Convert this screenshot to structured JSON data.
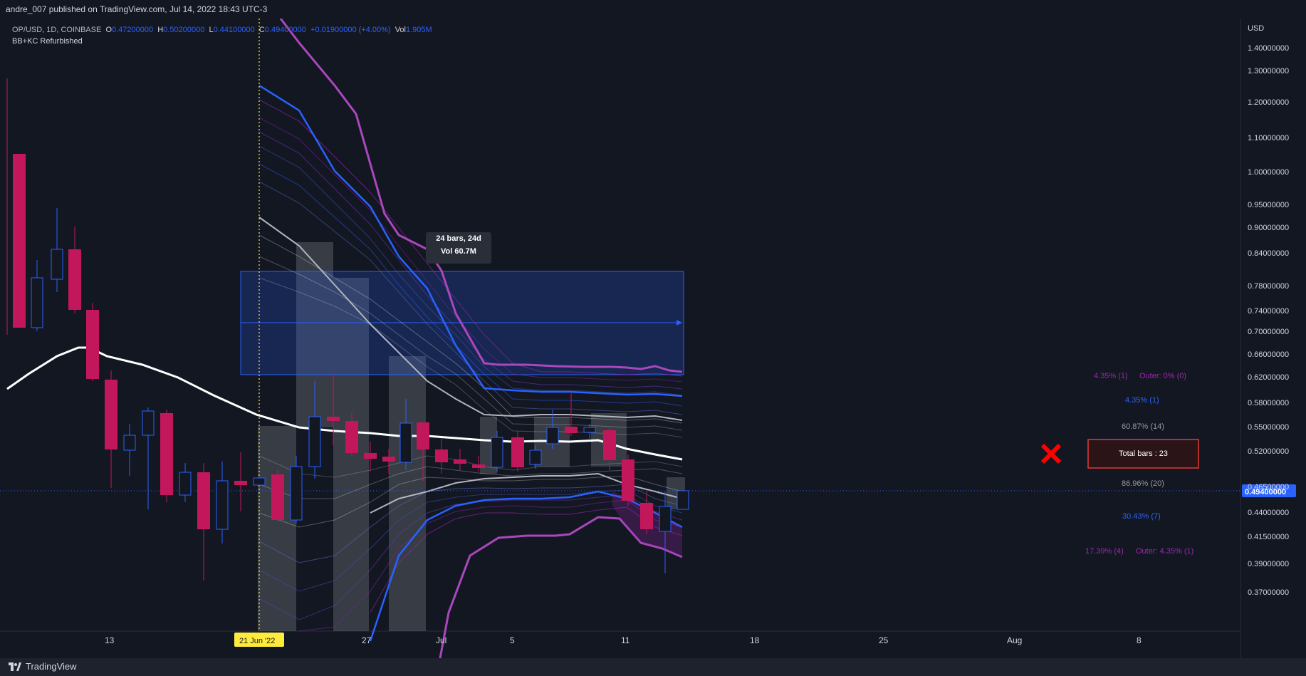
{
  "header": {
    "publish_line": "andre_007 published on TradingView.com, Jul 14, 2022 18:43 UTC-3"
  },
  "legend": {
    "symbol": "OP/USD, 1D, COINBASE",
    "open_label": "O",
    "open": "0.47200000",
    "high_label": "H",
    "high": "0.50200000",
    "low_label": "L",
    "low": "0.44100000",
    "close_label": "C",
    "close": "0.49400000",
    "change": "+0.01900000 (+4.00%)",
    "vol_label": "Vol",
    "vol": "1.905M",
    "indicator": "BB+KC Refurbished"
  },
  "price_axis": {
    "currency": "USD",
    "ticks": [
      "1.40000000",
      "1.30000000",
      "1.20000000",
      "1.10000000",
      "1.00000000",
      "0.95000000",
      "0.90000000",
      "0.84000000",
      "0.78000000",
      "0.74000000",
      "0.70000000",
      "0.66000000",
      "0.62000000",
      "0.58000000",
      "0.55000000",
      "0.52000000",
      "0.46500000",
      "0.44000000",
      "0.41500000",
      "0.39000000",
      "0.37000000"
    ],
    "current_price": "0.49400000",
    "current_color": "#2962ff"
  },
  "time_axis": {
    "ticks": [
      "13",
      "27",
      "Jul",
      "5",
      "11",
      "18",
      "25",
      "Aug",
      "8"
    ],
    "highlight": "21 Jun '22",
    "highlight_color": "#ffeb3b"
  },
  "measure_tooltip": {
    "line1": "24 bars, 24d",
    "line2": "Vol 60.7M"
  },
  "stats": {
    "upper_outer": "4.35% (1)",
    "upper_outer_extra": "Outer: 0% (0)",
    "upper_bb": "4.35% (1)",
    "upper_inner": "60.87% (14)",
    "lower_inner": "86.96% (20)",
    "lower_bb": "30.43% (7)",
    "lower_outer": "17.39% (4)",
    "lower_outer_extra": "Outer: 4.35% (1)",
    "total_bars": "Total bars : 23"
  },
  "colors": {
    "background": "#131722",
    "bear": "#c2185b",
    "bull": "#2962ff",
    "purple": "#9c27b0",
    "blue": "#2962ff",
    "basis": "#ffffff"
  },
  "footer": {
    "brand": "TradingView"
  }
}
